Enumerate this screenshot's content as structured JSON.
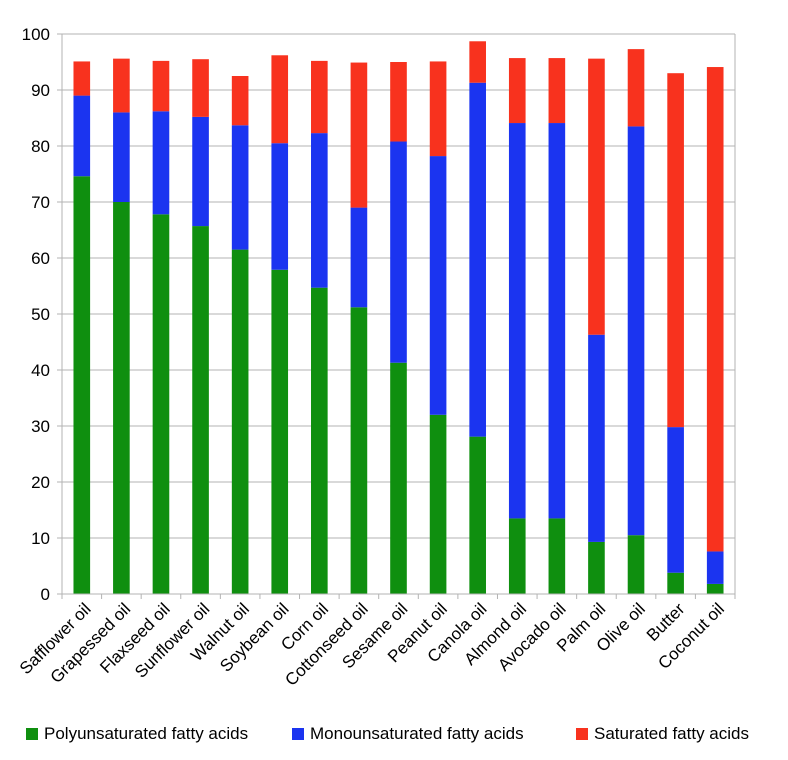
{
  "chart_data": {
    "type": "bar",
    "stacked": true,
    "title": "",
    "xlabel": "",
    "ylabel": "",
    "ylim": [
      0,
      100
    ],
    "yticks": [
      0,
      10,
      20,
      30,
      40,
      50,
      60,
      70,
      80,
      90,
      100
    ],
    "grid": true,
    "legend_position": "bottom",
    "categories": [
      "Safflower oil",
      "Grapessed oil",
      "Flaxseed oil",
      "Sunflower oil",
      "Walnut oil",
      "Soybean oil",
      "Corn oil",
      "Cottonseed oil",
      "Sesame oil",
      "Peanut oil",
      "Canola oil",
      "Almond oil",
      "Avocado oil",
      "Palm oil",
      "Olive oil",
      "Butter",
      "Coconut oil"
    ],
    "series": [
      {
        "name": "Polyunsaturated fatty acids",
        "color": "#0f8f0f",
        "values": [
          74.6,
          70.0,
          67.8,
          65.7,
          61.5,
          57.9,
          54.7,
          51.2,
          41.3,
          32.0,
          28.1,
          13.5,
          13.5,
          9.3,
          10.5,
          3.8,
          1.8
        ]
      },
      {
        "name": "Monounsaturated fatty acids",
        "color": "#1b34f0",
        "values": [
          14.4,
          16.0,
          18.4,
          19.5,
          22.2,
          22.6,
          27.6,
          17.8,
          39.5,
          46.2,
          63.2,
          70.6,
          70.6,
          37.0,
          73.0,
          26.0,
          5.8
        ]
      },
      {
        "name": "Saturated fatty acids",
        "color": "#f8321e",
        "values": [
          6.1,
          9.6,
          9.0,
          10.3,
          8.8,
          15.7,
          12.9,
          25.9,
          14.2,
          16.9,
          7.4,
          11.6,
          11.6,
          49.3,
          13.8,
          63.2,
          86.5
        ]
      }
    ]
  }
}
